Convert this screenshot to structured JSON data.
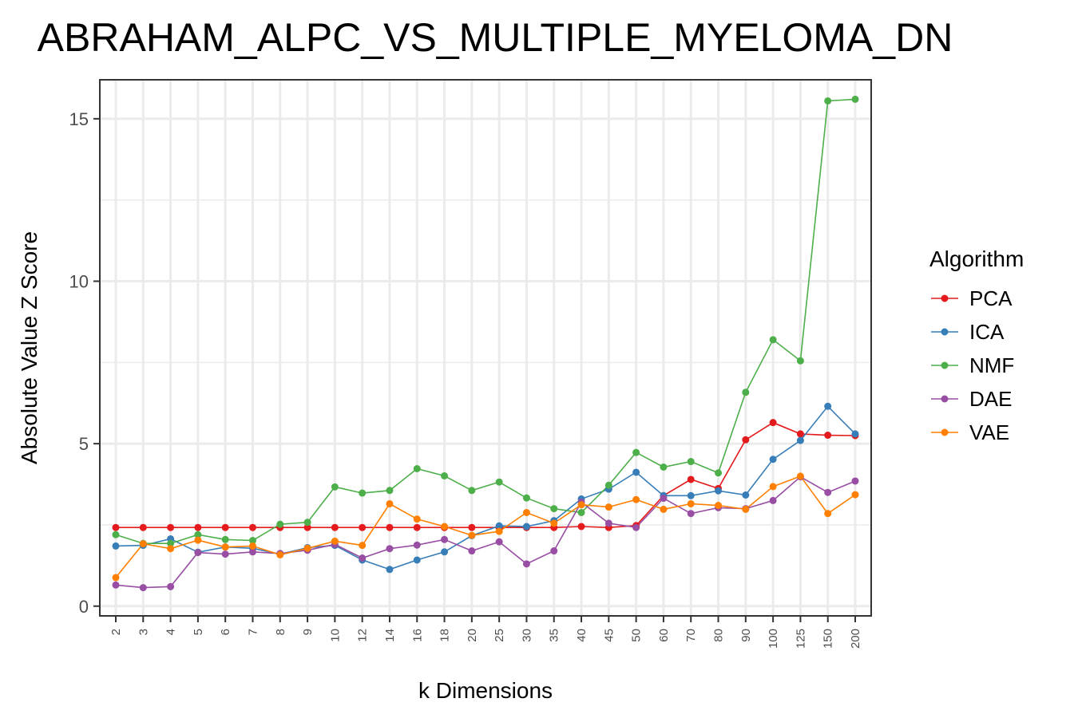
{
  "chart_data": {
    "type": "line",
    "title": "ABRAHAM_ALPC_VS_MULTIPLE_MYELOMA_DN",
    "xlabel": "k Dimensions",
    "ylabel": "Absolute Value Z Score",
    "ylim": [
      -0.3,
      16.2
    ],
    "yticks": [
      "0",
      "5",
      "10",
      "15"
    ],
    "grid": true,
    "legend_title": "Algorithm",
    "legend_position": "right",
    "categories": [
      "2",
      "3",
      "4",
      "5",
      "6",
      "7",
      "8",
      "9",
      "10",
      "12",
      "14",
      "16",
      "18",
      "20",
      "25",
      "30",
      "35",
      "40",
      "45",
      "50",
      "60",
      "70",
      "80",
      "90",
      "100",
      "125",
      "150",
      "200"
    ],
    "series": [
      {
        "name": "PCA",
        "color": "#e41a1c",
        "values": [
          2.42,
          2.42,
          2.42,
          2.42,
          2.42,
          2.42,
          2.42,
          2.42,
          2.42,
          2.42,
          2.42,
          2.42,
          2.42,
          2.42,
          2.42,
          2.42,
          2.42,
          2.45,
          2.42,
          2.48,
          3.4,
          3.9,
          3.62,
          5.12,
          5.65,
          5.3,
          5.26,
          5.25
        ]
      },
      {
        "name": "ICA",
        "color": "#377eb8",
        "values": [
          1.85,
          1.87,
          2.07,
          1.66,
          1.82,
          1.78,
          1.6,
          1.8,
          1.87,
          1.42,
          1.13,
          1.42,
          1.67,
          2.17,
          2.47,
          2.45,
          2.63,
          3.3,
          3.6,
          4.12,
          3.4,
          3.4,
          3.55,
          3.42,
          4.52,
          5.1,
          6.15,
          5.3
        ]
      },
      {
        "name": "NMF",
        "color": "#4daf4a",
        "values": [
          2.2,
          1.93,
          1.93,
          2.2,
          2.05,
          2.02,
          2.52,
          2.58,
          3.67,
          3.48,
          3.56,
          4.23,
          4.01,
          3.56,
          3.82,
          3.33,
          3.0,
          2.88,
          3.72,
          4.73,
          4.28,
          4.45,
          4.1,
          6.58,
          8.2,
          7.55,
          15.55,
          15.6
        ]
      },
      {
        "name": "DAE",
        "color": "#984ea3",
        "values": [
          0.65,
          0.57,
          0.6,
          1.65,
          1.6,
          1.67,
          1.62,
          1.72,
          1.9,
          1.48,
          1.77,
          1.88,
          2.05,
          1.7,
          1.98,
          1.3,
          1.7,
          3.2,
          2.55,
          2.42,
          3.32,
          2.85,
          3.03,
          3.0,
          3.25,
          3.98,
          3.5,
          3.85
        ]
      },
      {
        "name": "VAE",
        "color": "#ff7f00",
        "values": [
          0.88,
          1.92,
          1.77,
          2.03,
          1.82,
          1.85,
          1.58,
          1.78,
          2.0,
          1.87,
          3.15,
          2.68,
          2.45,
          2.18,
          2.3,
          2.88,
          2.55,
          3.12,
          3.05,
          3.28,
          2.98,
          3.15,
          3.1,
          2.98,
          3.68,
          4.0,
          2.85,
          3.43
        ]
      }
    ]
  }
}
